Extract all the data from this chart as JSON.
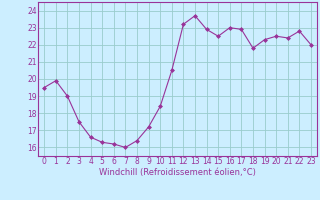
{
  "x": [
    0,
    1,
    2,
    3,
    4,
    5,
    6,
    7,
    8,
    9,
    10,
    11,
    12,
    13,
    14,
    15,
    16,
    17,
    18,
    19,
    20,
    21,
    22,
    23
  ],
  "y": [
    19.5,
    19.9,
    19.0,
    17.5,
    16.6,
    16.3,
    16.2,
    16.0,
    16.4,
    17.2,
    18.4,
    20.5,
    23.2,
    23.7,
    22.9,
    22.5,
    23.0,
    22.9,
    21.8,
    22.3,
    22.5,
    22.4,
    22.8,
    22.0
  ],
  "line_color": "#993399",
  "marker": "D",
  "marker_size": 2,
  "bg_color": "#cceeff",
  "grid_color": "#99cccc",
  "xlabel": "Windchill (Refroidissement éolien,°C)",
  "xlim": [
    -0.5,
    23.5
  ],
  "ylim": [
    15.5,
    24.5
  ],
  "yticks": [
    16,
    17,
    18,
    19,
    20,
    21,
    22,
    23,
    24
  ],
  "xticks": [
    0,
    1,
    2,
    3,
    4,
    5,
    6,
    7,
    8,
    9,
    10,
    11,
    12,
    13,
    14,
    15,
    16,
    17,
    18,
    19,
    20,
    21,
    22,
    23
  ],
  "tick_color": "#993399",
  "label_color": "#993399",
  "spine_color": "#993399",
  "tick_fontsize": 5.5,
  "xlabel_fontsize": 6.0,
  "linewidth": 0.8
}
